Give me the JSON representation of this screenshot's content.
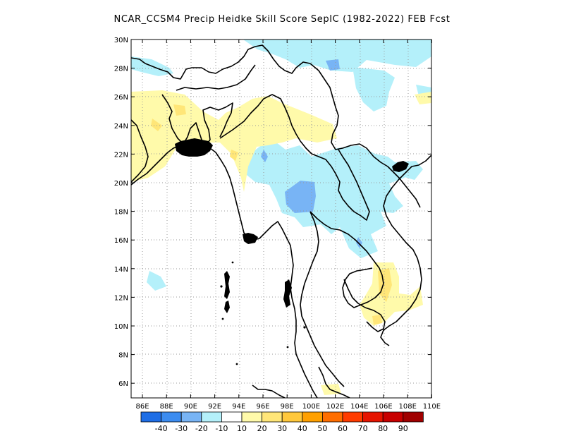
{
  "title": "NCAR_CCSM4 Precip Heidke Skill Score SepIC (1982-2022) FEB Fcst",
  "lon_labels": [
    "86E",
    "88E",
    "90E",
    "92E",
    "94E",
    "96E",
    "98E",
    "100E",
    "102E",
    "104E",
    "106E",
    "108E",
    "110E"
  ],
  "lat_labels": [
    "30N",
    "28N",
    "26N",
    "24N",
    "22N",
    "20N",
    "18N",
    "16N",
    "14N",
    "12N",
    "10N",
    "8N",
    "6N"
  ],
  "colorbar": {
    "colors": [
      "#1e6ee6",
      "#3c8cf0",
      "#78b4f5",
      "#b4f0fa",
      "#ffffff",
      "#fffaaa",
      "#ffe678",
      "#ffc83c",
      "#ffa000",
      "#ff6e00",
      "#ff3c00",
      "#e61400",
      "#c80000",
      "#a00000"
    ],
    "labels": [
      "-40",
      "-30",
      "-20",
      "-10",
      "10",
      "20",
      "30",
      "40",
      "50",
      "60",
      "70",
      "80",
      "90"
    ]
  },
  "colors": {
    "positive_10_20": "#fffaaa",
    "positive_20_30": "#ffe678",
    "negative_10_20": "#b4f0fa",
    "negative_20_30": "#78b4f5"
  }
}
